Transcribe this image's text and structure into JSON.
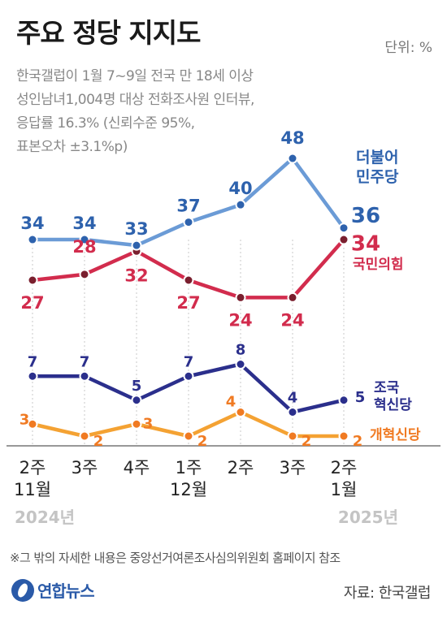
{
  "header": {
    "title": "주요 정당 지지도",
    "unit": "단위: %",
    "description": [
      "한국갤럽이 1월 7~9일 전국 만 18세 이상",
      "성인남녀1,004명 대상 전화조사원 인터뷰,",
      "응답률 16.3% (신뢰수준 95%,",
      "표본오차 ±3.1%p)"
    ]
  },
  "chart_data": {
    "type": "line",
    "categories": [
      [
        "2주",
        "11월"
      ],
      [
        "3주"
      ],
      [
        "4주"
      ],
      [
        "1주",
        "12월"
      ],
      [
        "2주"
      ],
      [
        "3주"
      ],
      [
        "2주",
        "1월"
      ]
    ],
    "year_labels": [
      "2024년",
      "2025년"
    ],
    "series": [
      {
        "name": "더불어 민주당",
        "label_lines": [
          "더불어",
          "민주당"
        ],
        "values": [
          34,
          34,
          33,
          37,
          40,
          48,
          36
        ],
        "line_color": "#6b9bd6",
        "text_color": "#2e62ad",
        "marker_color": "#2e62ad"
      },
      {
        "name": "국민의힘",
        "label_lines": [
          "국민의힘"
        ],
        "values": [
          27,
          28,
          32,
          27,
          24,
          24,
          34
        ],
        "line_color": "#d22c4d",
        "text_color": "#d22c4d",
        "marker_color": "#7a1f2e"
      },
      {
        "name": "조국 혁신당",
        "label_lines": [
          "조국",
          "혁신당"
        ],
        "values": [
          7,
          7,
          5,
          7,
          8,
          4,
          5
        ],
        "line_color": "#2b2f8c",
        "text_color": "#2b2f8c",
        "marker_color": "#2b2f8c"
      },
      {
        "name": "개혁신당",
        "label_lines": [
          "개혁신당"
        ],
        "values": [
          3,
          2,
          3,
          2,
          4,
          2,
          2
        ],
        "line_color": "#f4a233",
        "text_color": "#f07a22",
        "marker_color": "#f07a22"
      }
    ],
    "xlabel": "",
    "ylabel": "",
    "grid": false
  },
  "footer": {
    "note": "※그 밖의 자세한 내용은 중앙선거여론조사심의위원회 홈페이지 참조",
    "logo": "연합뉴스",
    "source": "자료: 한국갤럽"
  }
}
